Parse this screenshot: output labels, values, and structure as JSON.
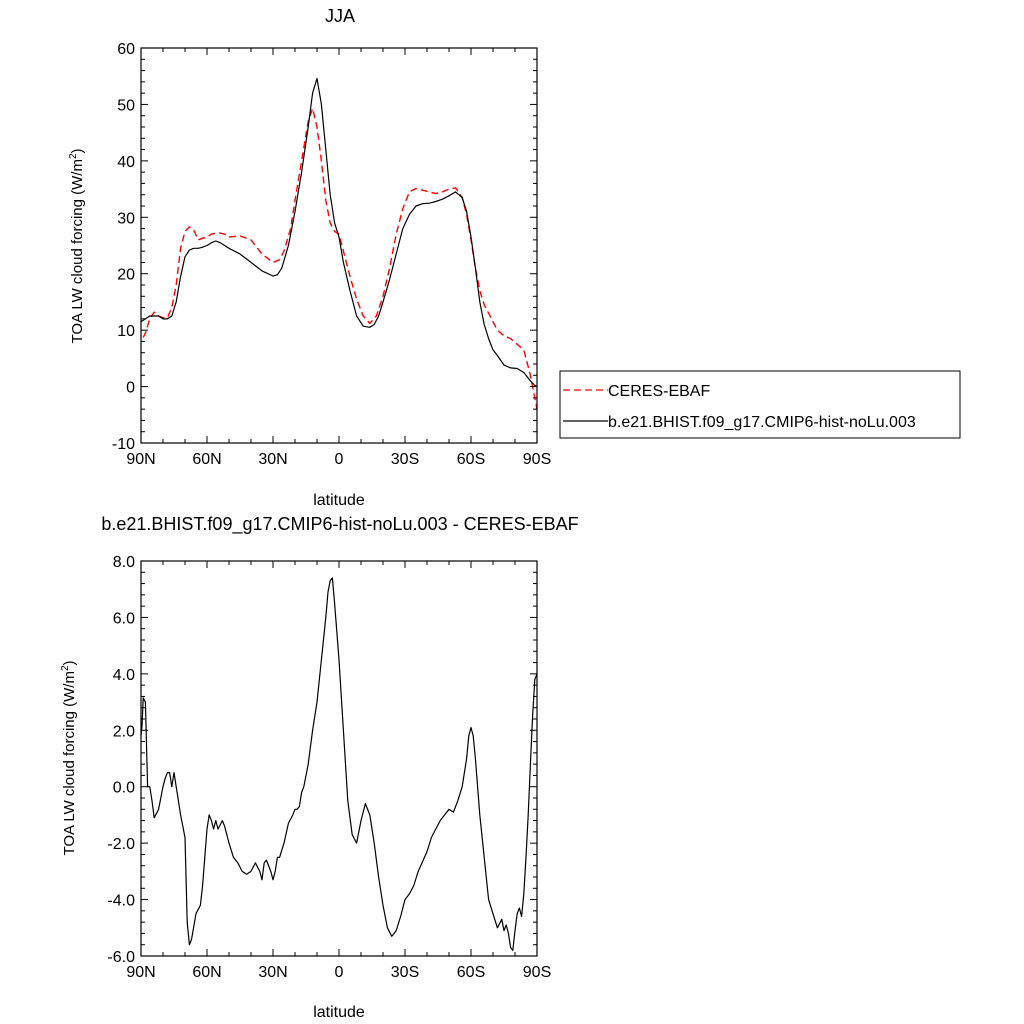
{
  "chart_data": [
    {
      "type": "line",
      "title": "JJA",
      "xlabel": "latitude",
      "ylabel": "TOA LW cloud forcing (W/m",
      "ylabel_sup": "2",
      "ylabel_close": ")",
      "xlim": [
        90,
        -90
      ],
      "ylim": [
        -10,
        60
      ],
      "xticks": [
        90,
        60,
        30,
        0,
        -30,
        -60,
        -90
      ],
      "xtick_labels": [
        "90N",
        "60N",
        "30N",
        "0",
        "30S",
        "60S",
        "90S"
      ],
      "yticks": [
        -10,
        0,
        10,
        20,
        30,
        40,
        50,
        60
      ],
      "ytick_labels": [
        "-10",
        "0",
        "10",
        "20",
        "30",
        "40",
        "50",
        "60"
      ],
      "grid": false,
      "legend_position": "right",
      "series": [
        {
          "name": "CERES-EBAF",
          "color": "#ff0000",
          "dash": "dashed",
          "x": [
            89,
            88,
            86,
            84,
            82,
            80,
            78,
            76,
            74,
            72,
            70,
            68,
            66,
            64,
            62,
            60,
            58,
            56,
            54,
            52,
            50,
            45,
            40,
            35,
            30,
            27,
            25,
            22,
            20,
            17,
            14,
            12,
            10,
            8,
            6,
            4,
            2,
            0,
            -2,
            -5,
            -8,
            -11,
            -14,
            -17,
            -20,
            -23,
            -26,
            -29,
            -32,
            -35,
            -38,
            -41,
            -44,
            -47,
            -50,
            -53,
            -56,
            -58,
            -60,
            -62,
            -64,
            -66,
            -68,
            -70,
            -72,
            -75,
            -78,
            -81,
            -84,
            -87,
            -89,
            -90
          ],
          "y": [
            8.7,
            9.5,
            12.0,
            13.2,
            12.5,
            12.2,
            12.2,
            14.0,
            18.0,
            24.5,
            27.5,
            28.3,
            27.7,
            26.0,
            26.3,
            26.5,
            27.0,
            27.2,
            27.2,
            27.0,
            26.5,
            26.7,
            26.0,
            23.5,
            22.0,
            22.5,
            24.0,
            28.0,
            33.0,
            40.0,
            47.0,
            49.3,
            46.0,
            40.0,
            33.0,
            29.0,
            27.5,
            27.0,
            24.0,
            19.5,
            15.5,
            12.5,
            11.2,
            12.5,
            16.0,
            21.0,
            27.0,
            31.5,
            34.5,
            35.1,
            34.8,
            34.5,
            34.2,
            34.5,
            35.0,
            35.2,
            33.5,
            30.5,
            26.0,
            21.0,
            17.0,
            14.5,
            13.0,
            11.5,
            10.0,
            9.0,
            8.5,
            7.5,
            6.5,
            2.0,
            -2.0,
            -4.0
          ]
        },
        {
          "name": "b.e21.BHIST.f09_g17.CMIP6-hist-noLu.003",
          "color": "#000000",
          "dash": "solid",
          "x": [
            90,
            88,
            86,
            84,
            82,
            80,
            78,
            76,
            74,
            72,
            70,
            68,
            66,
            64,
            62,
            60,
            58,
            56,
            54,
            52,
            50,
            45,
            40,
            35,
            30,
            28,
            26,
            23,
            20,
            17,
            14,
            12,
            10,
            8,
            6,
            4,
            2,
            0,
            -2,
            -5,
            -8,
            -11,
            -14,
            -16,
            -18,
            -20,
            -23,
            -26,
            -29,
            -32,
            -35,
            -38,
            -41,
            -44,
            -47,
            -50,
            -53,
            -56,
            -58,
            -60,
            -62,
            -64,
            -66,
            -68,
            -70,
            -72,
            -75,
            -78,
            -81,
            -84,
            -87,
            -89,
            -90
          ],
          "y": [
            11.5,
            12.0,
            12.5,
            12.5,
            12.5,
            12.0,
            12.0,
            12.5,
            15.0,
            19.5,
            23.0,
            24.2,
            24.5,
            24.5,
            24.7,
            25.0,
            25.5,
            25.8,
            25.5,
            25.0,
            24.5,
            23.5,
            22.0,
            20.5,
            19.6,
            19.8,
            21.0,
            25.0,
            31.0,
            38.0,
            46.0,
            52.0,
            54.6,
            50.0,
            42.0,
            34.0,
            29.0,
            26.5,
            22.0,
            17.0,
            12.5,
            10.7,
            10.5,
            11.0,
            12.5,
            15.0,
            19.0,
            23.5,
            28.0,
            30.5,
            32.0,
            32.4,
            32.5,
            32.8,
            33.2,
            33.8,
            34.5,
            33.5,
            31.0,
            26.5,
            21.0,
            15.0,
            11.0,
            8.5,
            6.5,
            5.5,
            3.8,
            3.3,
            3.2,
            2.5,
            1.0,
            0.2,
            0.0
          ]
        }
      ]
    },
    {
      "type": "line",
      "title": "b.e21.BHIST.f09_g17.CMIP6-hist-noLu.003 - CERES-EBAF",
      "xlabel": "latitude",
      "ylabel": "TOA LW cloud forcing (W/m",
      "ylabel_sup": "2",
      "ylabel_close": ")",
      "xlim": [
        90,
        -90
      ],
      "ylim": [
        -6,
        8
      ],
      "xticks": [
        90,
        60,
        30,
        0,
        -30,
        -60,
        -90
      ],
      "xtick_labels": [
        "90N",
        "60N",
        "30N",
        "0",
        "30S",
        "60S",
        "90S"
      ],
      "yticks": [
        -6,
        -4,
        -2,
        0,
        2,
        4,
        6,
        8
      ],
      "ytick_labels": [
        "-6.0",
        "-4.0",
        "-2.0",
        "0.0",
        "2.0",
        "4.0",
        "6.0",
        "8.0"
      ],
      "grid": false,
      "series": [
        {
          "name": "",
          "color": "#000000",
          "dash": "solid",
          "x": [
            90,
            89.5,
            89,
            88,
            87,
            86,
            85,
            84,
            82,
            80,
            79,
            78,
            77,
            76,
            75,
            74,
            72,
            70,
            69,
            68,
            67,
            65,
            63,
            62,
            61,
            60,
            59,
            58,
            57,
            56,
            55,
            53,
            52,
            50,
            48,
            46,
            44,
            42,
            40,
            38,
            36,
            35,
            34,
            33,
            31,
            30,
            29,
            28,
            27,
            25,
            23,
            21,
            20,
            19,
            18,
            17,
            16,
            14,
            12,
            10,
            8,
            6,
            5,
            4,
            3,
            2,
            0,
            -2,
            -4,
            -6,
            -8,
            -10,
            -12,
            -14,
            -16,
            -18,
            -20,
            -22,
            -24,
            -26,
            -28,
            -30,
            -32,
            -34,
            -36,
            -40,
            -42,
            -44,
            -46,
            -48,
            -50,
            -52,
            -54,
            -56,
            -58,
            -59,
            -60,
            -61,
            -62,
            -63,
            -64,
            -66,
            -68,
            -70,
            -72,
            -74,
            -75,
            -76,
            -77,
            -78,
            -79,
            -80,
            -81,
            -82,
            -83,
            -84,
            -85,
            -86,
            -87,
            -88,
            -89,
            -90
          ],
          "y": [
            1.8,
            2.2,
            3.15,
            3.0,
            0.0,
            0.0,
            -0.5,
            -1.1,
            -0.8,
            0.0,
            0.3,
            0.5,
            0.5,
            0.0,
            0.5,
            0.0,
            -1.0,
            -1.8,
            -4.8,
            -5.6,
            -5.4,
            -4.5,
            -4.2,
            -3.5,
            -2.5,
            -1.5,
            -1.0,
            -1.2,
            -1.5,
            -1.2,
            -1.5,
            -1.2,
            -1.4,
            -2.0,
            -2.5,
            -2.7,
            -3.0,
            -3.1,
            -3.0,
            -2.7,
            -3.0,
            -3.3,
            -2.7,
            -2.6,
            -3.0,
            -3.3,
            -3.0,
            -2.5,
            -2.5,
            -2.0,
            -1.3,
            -1.0,
            -0.8,
            -0.8,
            -0.7,
            -0.2,
            0.0,
            0.8,
            2.0,
            3.0,
            4.5,
            6.0,
            6.9,
            7.3,
            7.4,
            6.5,
            4.5,
            2.0,
            -0.5,
            -1.7,
            -2.0,
            -1.2,
            -0.6,
            -1.0,
            -2.0,
            -3.2,
            -4.2,
            -5.0,
            -5.3,
            -5.1,
            -4.6,
            -4.0,
            -3.8,
            -3.5,
            -3.0,
            -2.3,
            -1.8,
            -1.5,
            -1.2,
            -1.0,
            -0.8,
            -0.9,
            -0.5,
            0.0,
            1.0,
            1.8,
            2.1,
            1.8,
            1.0,
            0.0,
            -1.0,
            -2.5,
            -4.0,
            -4.5,
            -5.0,
            -4.7,
            -5.1,
            -4.9,
            -5.2,
            -5.7,
            -5.8,
            -5.1,
            -4.5,
            -4.3,
            -4.6,
            -3.8,
            -2.5,
            -1.0,
            0.8,
            2.5,
            3.8,
            4.0
          ]
        }
      ]
    }
  ]
}
